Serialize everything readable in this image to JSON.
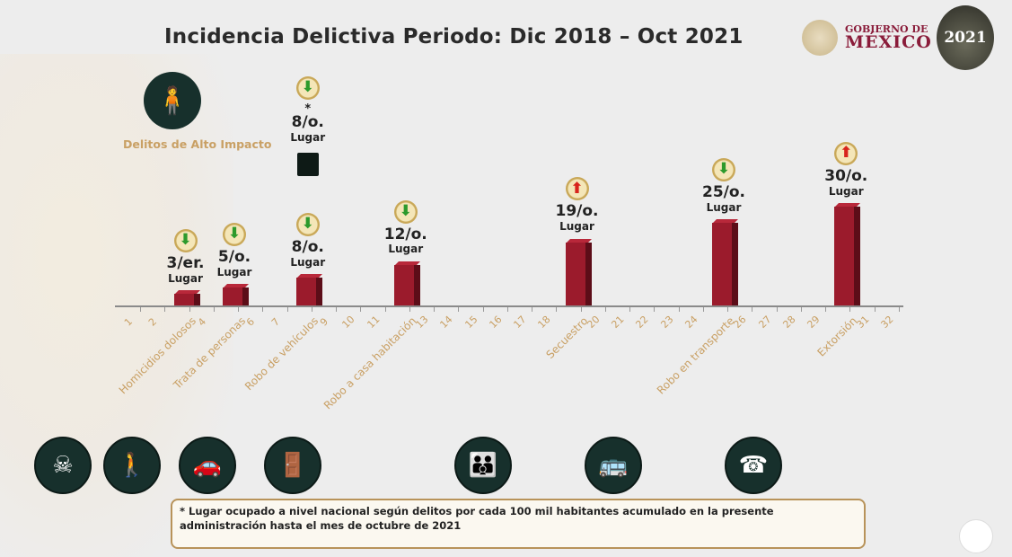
{
  "title": "Incidencia Delictiva Periodo: Dic 2018 – Oct 2021",
  "logos": {
    "gobierno_line1": "GOBIERNO DE",
    "gobierno_line2": "MÉXICO",
    "badge": "2021"
  },
  "hero": {
    "icon": "people-assault-icon",
    "label": "Delitos de Alto Impacto"
  },
  "colors": {
    "bar": "#9b1b2c",
    "label": "#c9a064",
    "icon_bg": "#17302c",
    "arrow_down": "#2c9a2c",
    "arrow_up": "#d8241c"
  },
  "chart_data": {
    "type": "bar",
    "title": "Incidencia Delictiva Periodo: Dic 2018 – Oct 2021",
    "categories": [
      "1",
      "2",
      "Homicidios dolosos",
      "4",
      "Trata de personas",
      "6",
      "7",
      "Robo de vehículos",
      "9",
      "10",
      "11",
      "Robo a casa habitación",
      "13",
      "14",
      "15",
      "16",
      "17",
      "18",
      "Secuestro",
      "20",
      "21",
      "22",
      "23",
      "24",
      "Robo en transporte",
      "26",
      "27",
      "28",
      "29",
      "Extorsión",
      "31",
      "32"
    ],
    "bars": [
      {
        "position": 3,
        "crime": "Homicidios dolosos",
        "rank": 3,
        "rank_label": "3/er.",
        "lugar": "Lugar",
        "trend": "down"
      },
      {
        "position": 5,
        "crime": "Trata de personas",
        "rank": 5,
        "rank_label": "5/o.",
        "lugar": "Lugar",
        "trend": "down"
      },
      {
        "position": 8,
        "crime": "Robo de vehículos",
        "rank": 8,
        "rank_label": "8/o.",
        "lugar": "Lugar",
        "trend": "down"
      },
      {
        "position": 12,
        "crime": "Robo a casa habitación",
        "rank": 12,
        "rank_label": "12/o.",
        "lugar": "Lugar",
        "trend": "down"
      },
      {
        "position": 19,
        "crime": "Secuestro",
        "rank": 19,
        "rank_label": "19/o.",
        "lugar": "Lugar",
        "trend": "up"
      },
      {
        "position": 25,
        "crime": "Robo en transporte",
        "rank": 25,
        "rank_label": "25/o.",
        "lugar": "Lugar",
        "trend": "up_down_note",
        "trend_shown": "down"
      },
      {
        "position": 30,
        "crime": "Extorsión",
        "rank": 30,
        "rank_label": "30/o.",
        "lugar": "Lugar",
        "trend": "up"
      }
    ],
    "legend_note": {
      "star": "*",
      "rank_label": "8/o.",
      "lugar": "Lugar",
      "trend": "down"
    },
    "xlabel": "",
    "ylabel": "",
    "grid": false
  },
  "bottom_icons": [
    "homicide-icon",
    "trafficking-icon",
    "car-theft-icon",
    "house-robbery-icon",
    "kidnapping-icon",
    "bus-icon",
    "extortion-icon"
  ],
  "footnote": "* Lugar ocupado a nivel nacional según delitos por cada 100 mil habitantes acumulado en la presente administración hasta el mes de octubre de 2021"
}
